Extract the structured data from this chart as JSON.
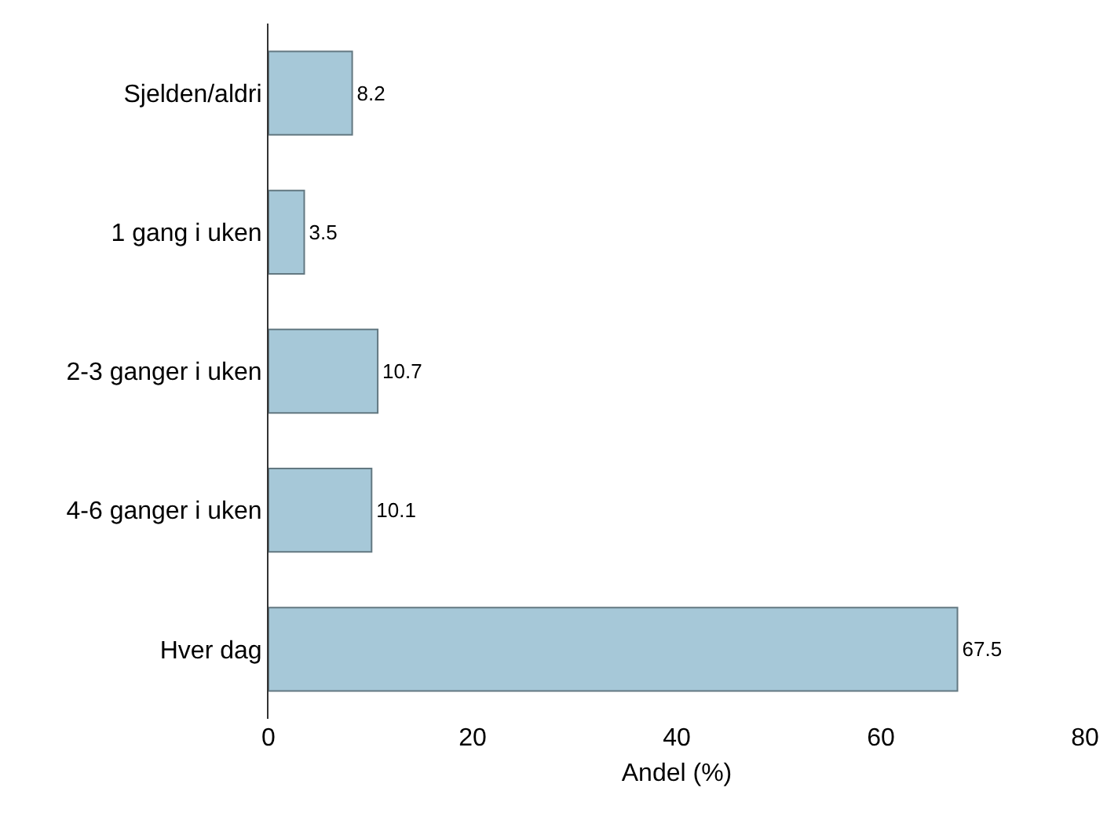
{
  "chart_data": {
    "type": "bar",
    "orientation": "horizontal",
    "xlabel": "Andel (%)",
    "categories": [
      "Sjelden/aldri",
      "1 gang i uken",
      "2-3 ganger i uken",
      "4-6 ganger i uken",
      "Hver dag"
    ],
    "values": [
      8.2,
      3.5,
      10.7,
      10.1,
      67.5
    ],
    "color": "#a6c8d8",
    "xlim": [
      0,
      80
    ],
    "xticks": [
      0,
      20,
      40,
      60,
      80
    ],
    "data_labels": true
  }
}
